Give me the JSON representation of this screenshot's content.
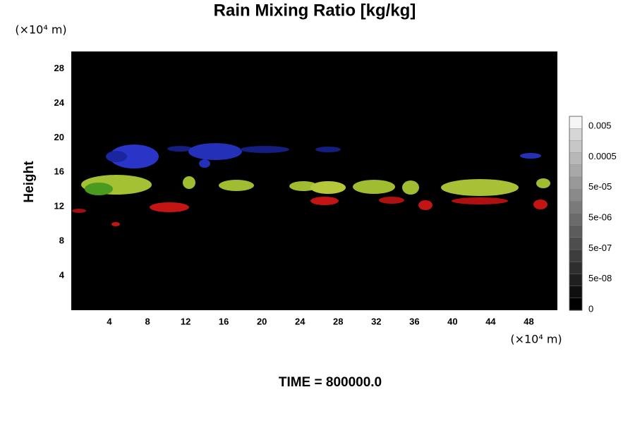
{
  "chart_data": {
    "type": "volume",
    "title": "Rain Mixing Ratio [kg/kg]",
    "ylabel": "Height",
    "x_unit": "(×10⁴ m)",
    "y_unit": "(×10⁴ m)",
    "xlim": [
      0,
      51
    ],
    "xticks": [
      4,
      8,
      12,
      16,
      20,
      24,
      28,
      32,
      36,
      40,
      44,
      48
    ],
    "ylim": [
      0,
      30
    ],
    "yticks": [
      4,
      8,
      12,
      16,
      20,
      24,
      28
    ],
    "colorbar_ticks": [
      0.005,
      0.0005,
      {
        "value": 5e-05,
        "label": "5e-05"
      },
      {
        "value": 5e-06,
        "label": "5e-06"
      },
      {
        "value": 5e-07,
        "label": "5e-07"
      },
      {
        "value": 5e-08,
        "label": "5e-08"
      },
      0
    ],
    "time_label": "TIME = 800000.0"
  }
}
